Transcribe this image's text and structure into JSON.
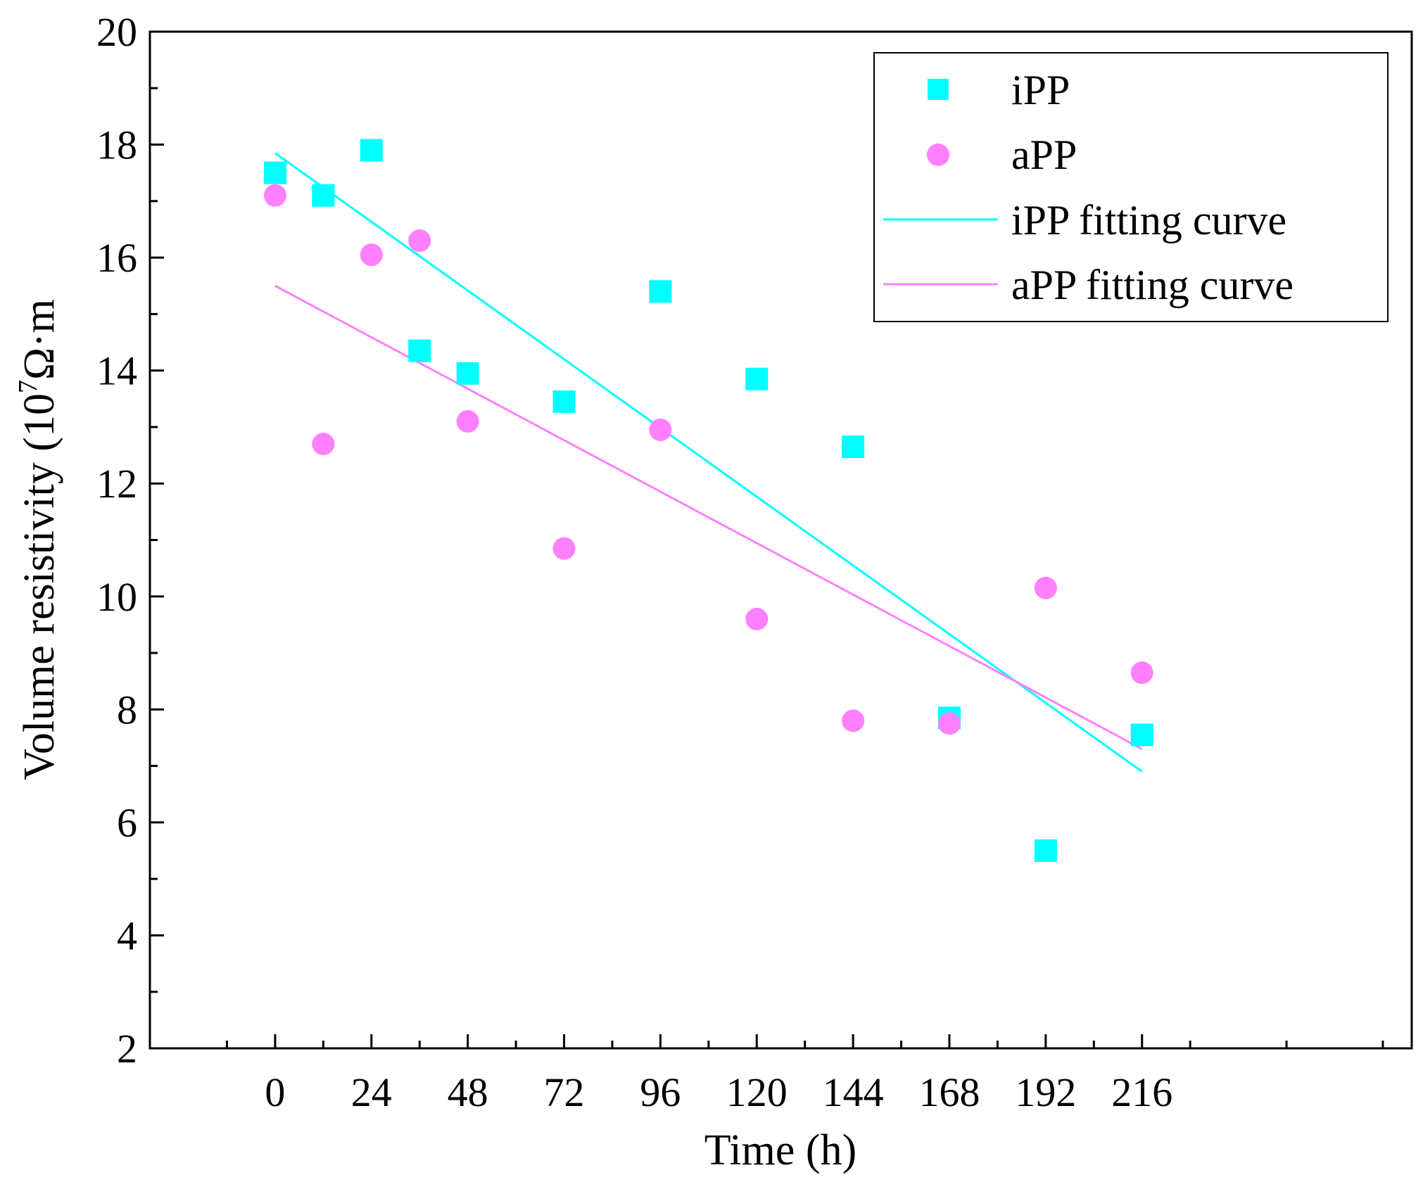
{
  "chart_data": {
    "type": "scatter",
    "title": "",
    "xlabel": "Time (h)",
    "ylabel": {
      "prefix": "Volume resistivity (10",
      "superscript": "7",
      "suffix": "Ω·m"
    },
    "xlim": [
      -31.2,
      283.2
    ],
    "ylim": [
      2,
      20
    ],
    "xticks": [
      0,
      24,
      48,
      72,
      96,
      120,
      144,
      168,
      192,
      216
    ],
    "yticks": [
      2,
      4,
      6,
      8,
      10,
      12,
      14,
      16,
      18,
      20
    ],
    "grid": false,
    "legend_position": "top-right",
    "series": [
      {
        "name": "iPP",
        "kind": "points",
        "marker": "square",
        "color": "#00ffff",
        "x": [
          0,
          12,
          24,
          36,
          48,
          72,
          96,
          120,
          144,
          168,
          192,
          216
        ],
        "y": [
          17.5,
          17.1,
          17.9,
          14.35,
          13.95,
          13.45,
          15.4,
          13.85,
          12.65,
          7.85,
          5.5,
          7.55
        ]
      },
      {
        "name": "aPP",
        "kind": "points",
        "marker": "circle",
        "color": "#ff80ff",
        "x": [
          0,
          12,
          24,
          36,
          48,
          72,
          96,
          120,
          144,
          168,
          192,
          216
        ],
        "y": [
          17.1,
          12.7,
          16.05,
          16.3,
          13.1,
          10.85,
          12.95,
          9.6,
          7.8,
          7.75,
          10.15,
          8.65
        ]
      },
      {
        "name": "iPP fitting curve",
        "kind": "line",
        "color": "#00ffff",
        "x": [
          0,
          216
        ],
        "y": [
          17.85,
          6.9
        ]
      },
      {
        "name": "aPP fitting curve",
        "kind": "line",
        "color": "#ff80ff",
        "x": [
          0,
          216
        ],
        "y": [
          15.5,
          7.3
        ]
      }
    ]
  }
}
